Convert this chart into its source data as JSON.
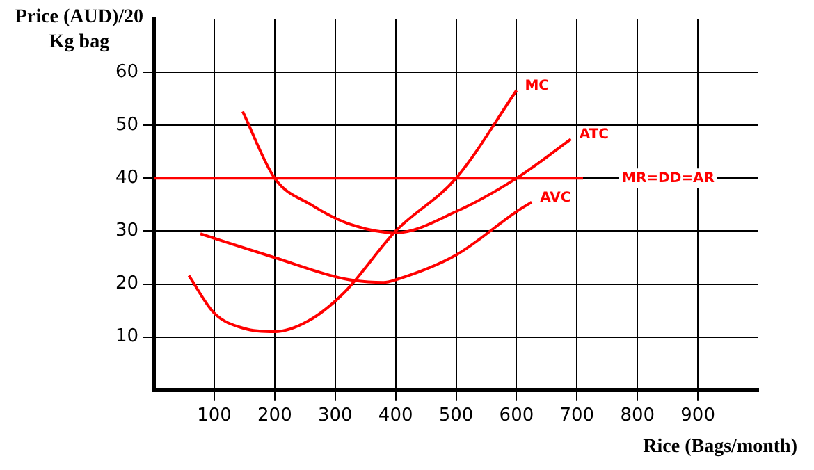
{
  "chart_data": {
    "type": "line",
    "xlabel": "Rice (Bags/month)",
    "ylabel": "Price (AUD)/20 Kg bag",
    "xlim": [
      0,
      1000
    ],
    "ylim": [
      0,
      70
    ],
    "xticks": [
      100,
      200,
      300,
      400,
      500,
      600,
      700,
      800,
      900
    ],
    "yticks": [
      10,
      20,
      30,
      40,
      50,
      60
    ],
    "grid": true,
    "legend": false,
    "marker": "none",
    "line_style": "solid",
    "series": [
      {
        "name": "MC",
        "color": "#ff0000",
        "x": [
          58,
          100,
          150,
          200,
          255,
          315,
          400,
          500,
          600
        ],
        "values": [
          21.6,
          14.5,
          11.6,
          11,
          13,
          18.4,
          30,
          40,
          56.6
        ]
      },
      {
        "name": "ATC",
        "color": "#ff0000",
        "x": [
          147,
          200,
          260,
          320,
          400,
          500,
          600,
          690
        ],
        "values": [
          52.6,
          40,
          35,
          31.5,
          29.7,
          33.7,
          40,
          47.4
        ]
      },
      {
        "name": "AVC",
        "color": "#ff0000",
        "x": [
          77,
          200,
          315,
          380,
          400,
          500,
          600,
          625
        ],
        "values": [
          29.5,
          25,
          21,
          20.3,
          20.8,
          25.5,
          33.7,
          35.5
        ]
      }
    ],
    "ref_lines": [
      {
        "axis": "y",
        "value": 40,
        "label": "MR=DD=AR",
        "color": "#ff0000"
      }
    ]
  }
}
